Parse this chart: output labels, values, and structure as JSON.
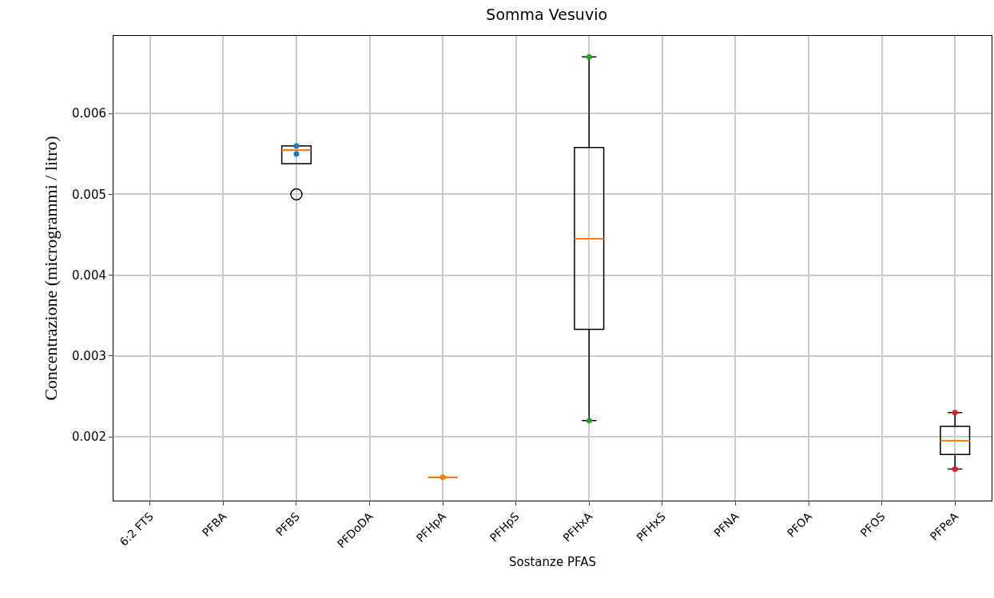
{
  "chart_data": {
    "type": "box",
    "title": "Somma Vesuvio",
    "xlabel": "Sostanze PFAS",
    "ylabel": "Concentrazione (microgrammi / litro)",
    "categories": [
      "6:2 FTS",
      "PFBA",
      "PFBS",
      "PFDoDA",
      "PFHpA",
      "PFHpS",
      "PFHxA",
      "PFHxS",
      "PFNA",
      "PFOA",
      "PFOS",
      "PFPeA"
    ],
    "boxes": [
      null,
      null,
      {
        "low": 0.00538,
        "q1": 0.00538,
        "median": 0.00555,
        "q3": 0.0056,
        "high": 0.0056,
        "outliers": [
          0.005
        ]
      },
      null,
      {
        "low": 0.0015,
        "q1": 0.0015,
        "median": 0.0015,
        "q3": 0.0015,
        "high": 0.0015
      },
      null,
      {
        "low": 0.0022,
        "q1": 0.00333,
        "median": 0.00445,
        "q3": 0.00558,
        "high": 0.0067
      },
      null,
      null,
      null,
      null,
      {
        "low": 0.0016,
        "q1": 0.00178,
        "median": 0.00195,
        "q3": 0.00213,
        "high": 0.0023
      }
    ],
    "series": [
      {
        "type": "scatter",
        "x": [
          "PFBS",
          "PFBS",
          "PFBS",
          "PFHpA",
          "PFHpA",
          "PFHxA",
          "PFHxA",
          "PFPeA",
          "PFPeA"
        ],
        "values": [
          0.0056,
          0.0055,
          null,
          0.0015,
          null,
          0.0067,
          0.0022,
          0.0023,
          0.0016
        ],
        "colors": [
          "#1f77b4",
          "#1f77b4",
          "#1f77b4",
          "#ff7f0e",
          "#ff7f0e",
          "#2ca02c",
          "#2ca02c",
          "#d62728",
          "#d62728"
        ]
      }
    ],
    "ylim": [
      0.00121,
      0.00696
    ],
    "yticks": [
      0.002,
      0.003,
      0.004,
      0.005,
      0.006
    ],
    "grid": true,
    "marker": "circle"
  }
}
